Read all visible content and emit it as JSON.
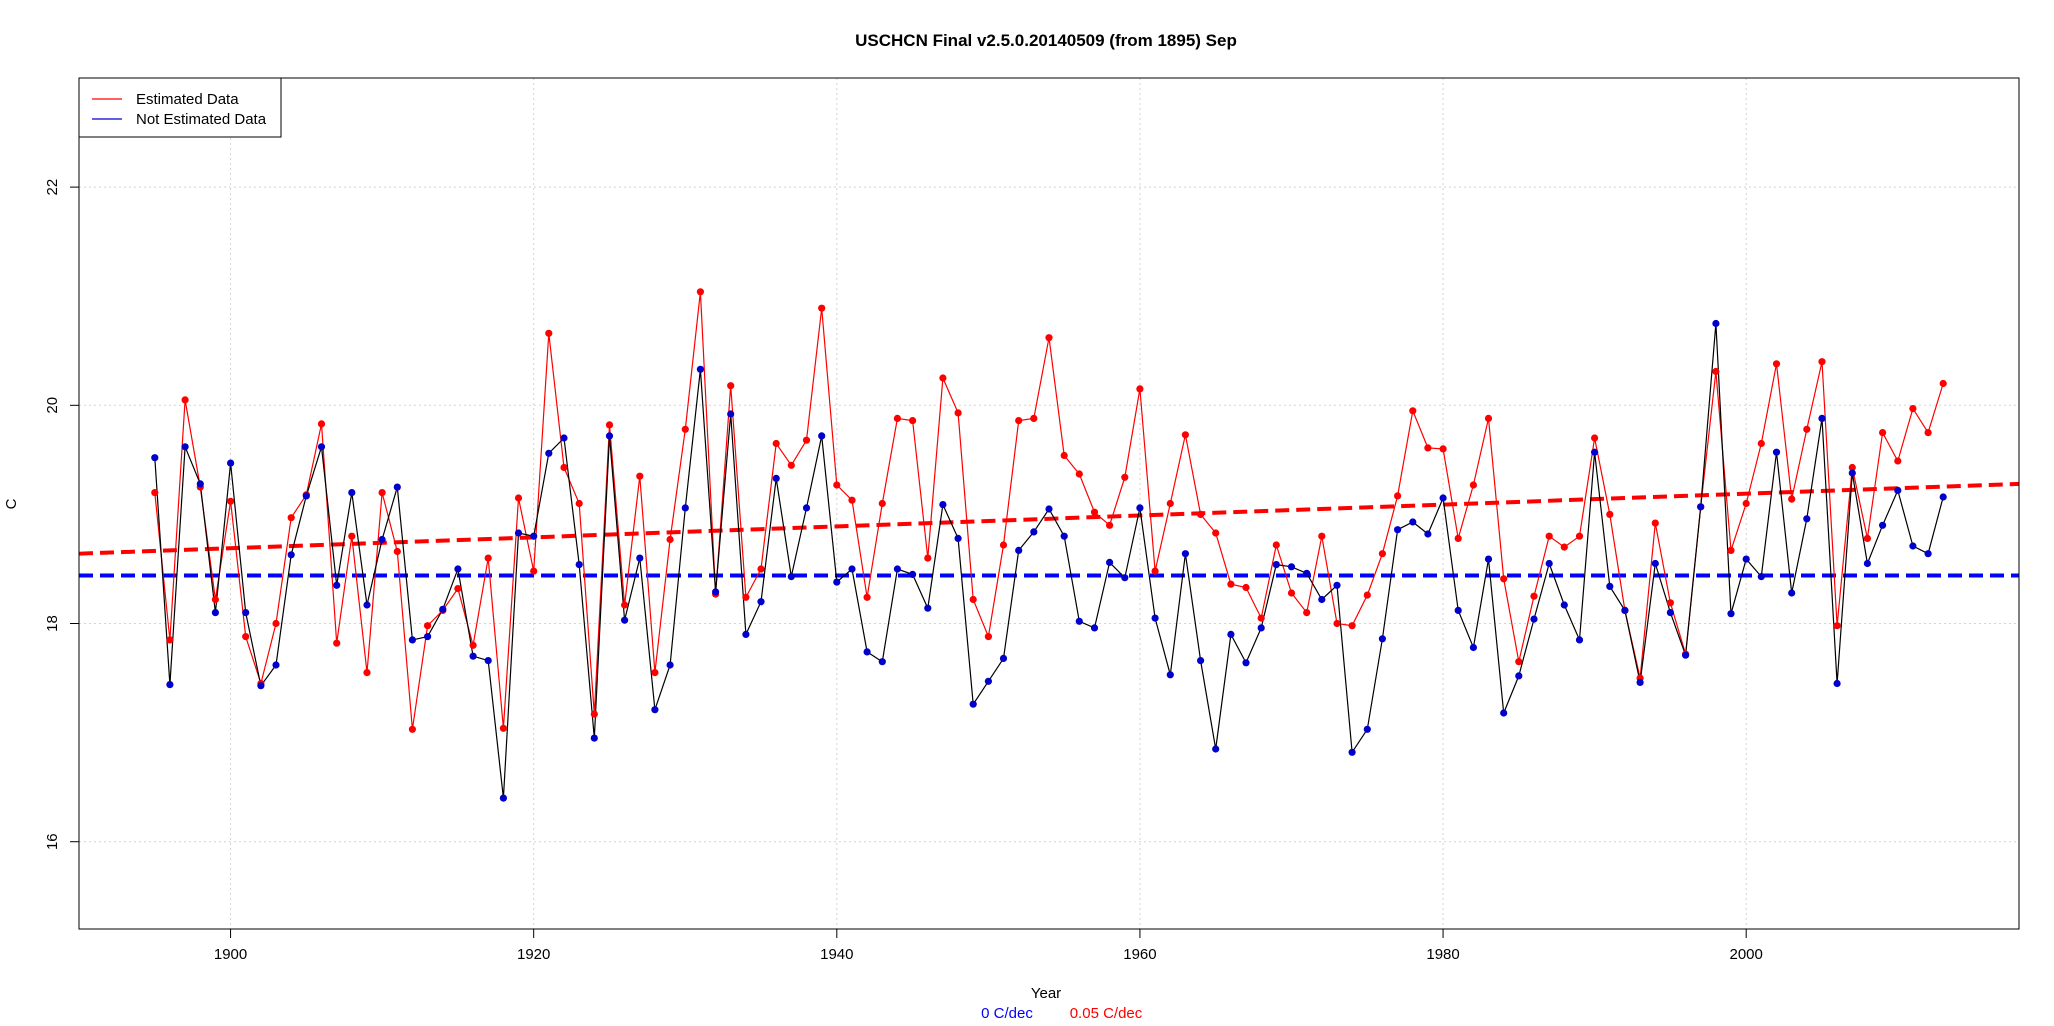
{
  "chart_data": {
    "type": "line",
    "title": "USCHCN Final v2.5.0.20140509 (from 1895) Sep",
    "xlabel": "Year",
    "ylabel": "C",
    "xlim": [
      1890,
      2018
    ],
    "ylim": [
      15.2,
      23.0
    ],
    "x_ticks": [
      1900,
      1920,
      1940,
      1960,
      1980,
      2000
    ],
    "y_ticks": [
      16,
      18,
      20,
      22
    ],
    "grid": true,
    "legend_position": "top-left",
    "legend": [
      {
        "label": "Estimated Data",
        "color": "#ff0000"
      },
      {
        "label": "Not Estimated Data",
        "color": "#0000cd"
      }
    ],
    "trend_labels": [
      {
        "text": "0 C/dec",
        "color": "#0000ff"
      },
      {
        "text": "0.05 C/dec",
        "color": "#ff0000"
      }
    ],
    "x": [
      1895,
      1896,
      1897,
      1898,
      1899,
      1900,
      1901,
      1902,
      1903,
      1904,
      1905,
      1906,
      1907,
      1908,
      1909,
      1910,
      1911,
      1912,
      1913,
      1914,
      1915,
      1916,
      1917,
      1918,
      1919,
      1920,
      1921,
      1922,
      1923,
      1924,
      1925,
      1926,
      1927,
      1928,
      1929,
      1930,
      1931,
      1932,
      1933,
      1934,
      1935,
      1936,
      1937,
      1938,
      1939,
      1940,
      1941,
      1942,
      1943,
      1944,
      1945,
      1946,
      1947,
      1948,
      1949,
      1950,
      1951,
      1952,
      1953,
      1954,
      1955,
      1956,
      1957,
      1958,
      1959,
      1960,
      1961,
      1962,
      1963,
      1964,
      1965,
      1966,
      1967,
      1968,
      1969,
      1970,
      1971,
      1972,
      1973,
      1974,
      1975,
      1976,
      1977,
      1978,
      1979,
      1980,
      1981,
      1982,
      1983,
      1984,
      1985,
      1986,
      1987,
      1988,
      1989,
      1990,
      1991,
      1992,
      1993,
      1994,
      1995,
      1996,
      1997,
      1998,
      1999,
      2000,
      2001,
      2002,
      2003,
      2004,
      2005,
      2006,
      2007,
      2008,
      2009,
      2010,
      2011,
      2012,
      2013
    ],
    "series": [
      {
        "name": "Estimated Data",
        "color": "#ff0000",
        "values": [
          19.2,
          17.85,
          20.05,
          19.25,
          18.22,
          19.12,
          17.88,
          17.45,
          18.0,
          18.97,
          19.18,
          19.83,
          17.82,
          18.8,
          17.55,
          19.2,
          18.66,
          17.03,
          17.98,
          18.12,
          18.32,
          17.8,
          18.6,
          17.04,
          19.15,
          18.48,
          20.66,
          19.43,
          19.1,
          17.17,
          19.82,
          18.17,
          19.35,
          17.55,
          18.77,
          19.78,
          21.04,
          18.27,
          20.18,
          18.24,
          18.5,
          19.65,
          19.45,
          19.68,
          20.89,
          19.27,
          19.13,
          18.24,
          19.1,
          19.88,
          19.86,
          18.6,
          20.25,
          19.93,
          18.22,
          17.88,
          18.72,
          19.86,
          19.88,
          20.62,
          19.54,
          19.37,
          19.02,
          18.9,
          19.34,
          20.15,
          18.48,
          19.1,
          19.73,
          19.0,
          18.83,
          18.36,
          18.33,
          18.05,
          18.72,
          18.28,
          18.1,
          18.8,
          18.0,
          17.98,
          18.26,
          18.64,
          19.17,
          19.95,
          19.61,
          19.6,
          18.78,
          19.27,
          19.88,
          18.41,
          17.65,
          18.25,
          18.8,
          18.7,
          18.8,
          19.7,
          19.0,
          18.12,
          17.5,
          18.92,
          18.19,
          17.72,
          19.07,
          20.31,
          18.67,
          19.1,
          19.65,
          20.38,
          19.14,
          19.78,
          20.4,
          17.98,
          19.43,
          18.78,
          19.75,
          19.49,
          19.97,
          19.75,
          20.2
        ]
      },
      {
        "name": "Not Estimated Data",
        "color": "#0000cd",
        "values": [
          19.52,
          17.44,
          19.62,
          19.28,
          18.1,
          19.47,
          18.1,
          17.43,
          17.62,
          18.63,
          19.17,
          19.62,
          18.35,
          19.2,
          18.17,
          18.77,
          19.25,
          17.85,
          17.88,
          18.13,
          18.5,
          17.7,
          17.66,
          16.4,
          18.83,
          18.8,
          19.56,
          19.7,
          18.54,
          16.95,
          19.72,
          18.03,
          18.6,
          17.21,
          17.62,
          19.06,
          20.33,
          18.29,
          19.92,
          17.9,
          18.2,
          19.33,
          18.43,
          19.06,
          19.72,
          18.38,
          18.5,
          17.74,
          17.65,
          18.5,
          18.45,
          18.14,
          19.09,
          18.78,
          17.26,
          17.47,
          17.68,
          18.67,
          18.84,
          19.05,
          18.8,
          18.02,
          17.96,
          18.56,
          18.42,
          19.06,
          18.05,
          17.53,
          18.64,
          17.66,
          16.85,
          17.9,
          17.64,
          17.96,
          18.54,
          18.52,
          18.46,
          18.22,
          18.35,
          16.82,
          17.03,
          17.86,
          18.86,
          18.93,
          18.82,
          19.15,
          18.12,
          17.78,
          18.59,
          17.18,
          17.52,
          18.04,
          18.55,
          18.17,
          17.85,
          19.57,
          18.34,
          18.12,
          17.46,
          18.55,
          18.1,
          17.71,
          19.07,
          20.75,
          18.09,
          18.59,
          18.43,
          19.57,
          18.28,
          18.96,
          19.88,
          17.45,
          19.38,
          18.55,
          18.9,
          19.22,
          18.71,
          18.64,
          19.16
        ]
      }
    ],
    "trend_lines": [
      {
        "name": "0 C/dec",
        "color": "#0000ff",
        "x": [
          1890,
          2018
        ],
        "y": [
          18.44,
          18.44
        ]
      },
      {
        "name": "0.05 C/dec",
        "color": "#ff0000",
        "x": [
          1890,
          2018
        ],
        "y": [
          18.64,
          19.28
        ]
      }
    ]
  }
}
